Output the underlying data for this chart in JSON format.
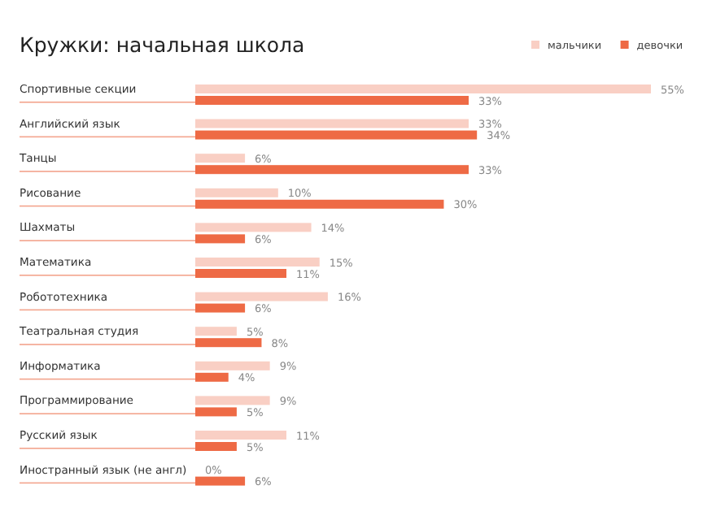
{
  "chart_data": {
    "type": "bar",
    "orientation": "horizontal",
    "title": "Кружки: начальная школа",
    "categories": [
      "Спортивные секции",
      "Английский язык",
      "Танцы",
      "Рисование",
      "Шахматы",
      "Математика",
      "Робототехника",
      "Театральная студия",
      "Информатика",
      "Программирование",
      "Русский язык",
      "Иностранный язык (не англ)"
    ],
    "series": [
      {
        "name": "мальчики",
        "color": "#f9cfc4",
        "values": [
          55,
          33,
          6,
          10,
          14,
          15,
          16,
          5,
          9,
          9,
          11,
          0
        ],
        "value_labels": [
          "55%",
          "33%",
          "6%",
          "10%",
          "14%",
          "15%",
          "16%",
          "5%",
          "9%",
          "9%",
          "11%",
          "0%"
        ]
      },
      {
        "name": "девочки",
        "color": "#ee6a45",
        "values": [
          33,
          34,
          33,
          30,
          6,
          11,
          6,
          8,
          4,
          5,
          5,
          6
        ],
        "value_labels": [
          "33%",
          "34%",
          "33%",
          "30%",
          "6%",
          "11%",
          "6%",
          "8%",
          "4%",
          "5%",
          "5%",
          "6%"
        ]
      }
    ],
    "legend": "top right"
  }
}
